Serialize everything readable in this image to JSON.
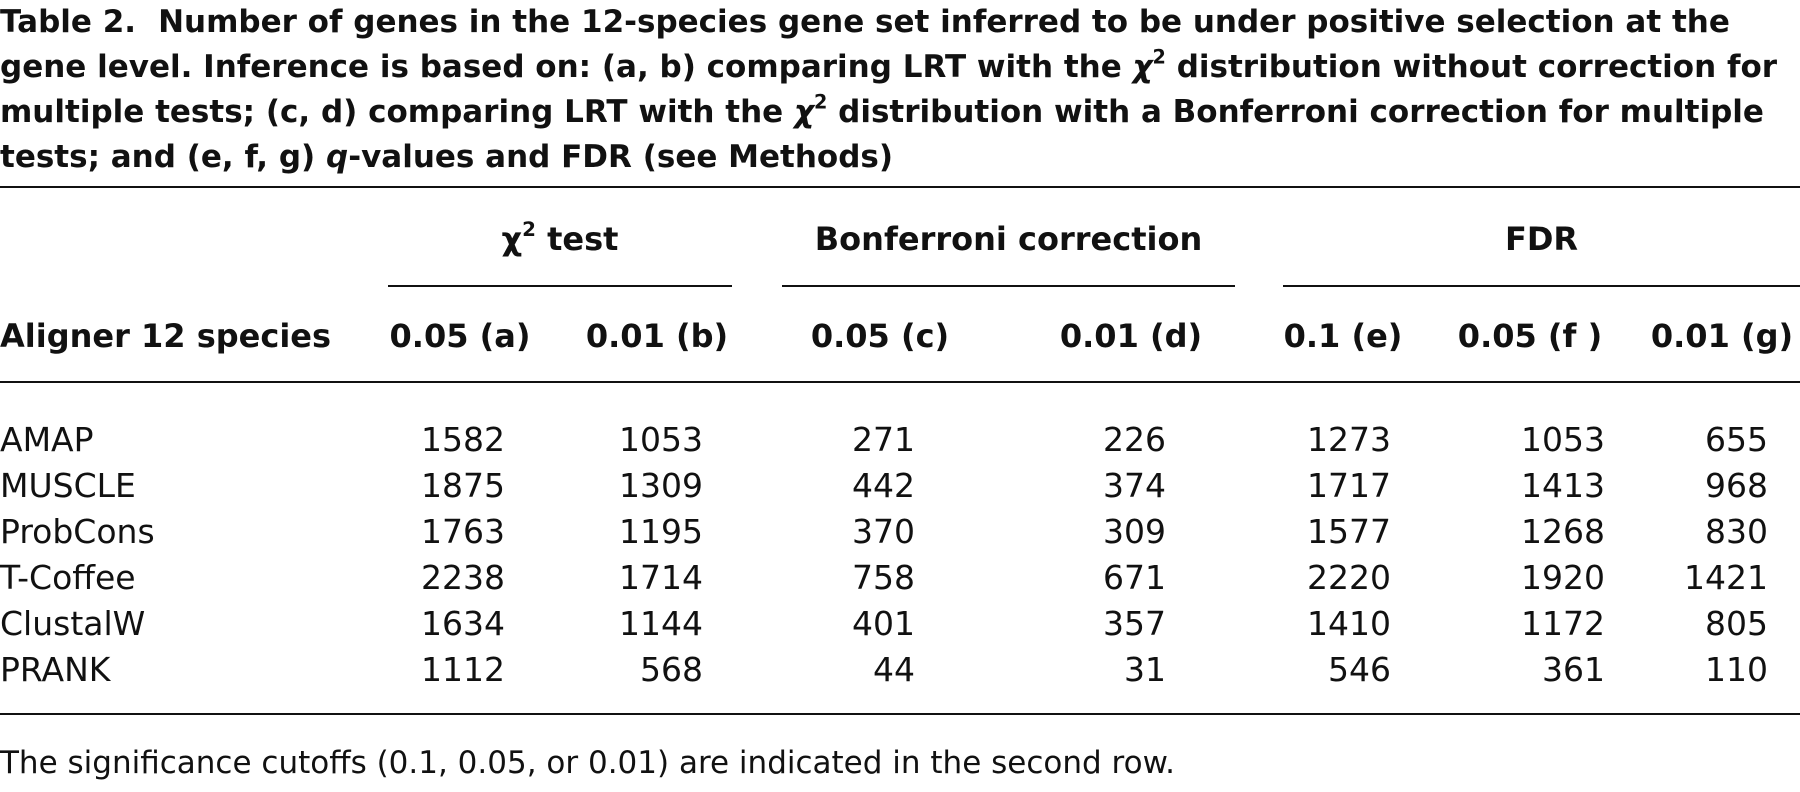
{
  "caption": {
    "label": "Table 2.",
    "parts": [
      "Number of genes in the 12-species gene set inferred to be under positive selection at the gene level. Inference is based on: (a, b) comparing LRT with the ",
      "χ",
      "2",
      " distribution without correction for multiple tests; (c, d) comparing LRT with the ",
      "χ",
      "2",
      " distribution with a Bonferroni correction for multiple tests; and (e, f, g) ",
      "q",
      "-values and FDR (see Methods)"
    ]
  },
  "table": {
    "groups": [
      {
        "parts": [
          "χ",
          "2",
          " test"
        ]
      },
      {
        "parts": [
          "Bonferroni correction"
        ]
      },
      {
        "parts": [
          "FDR"
        ]
      }
    ],
    "headers": [
      "Aligner 12 species",
      "0.05 (a)",
      "0.01 (b)",
      "0.05 (c)",
      "0.01 (d)",
      "0.1 (e)",
      "0.05 (f )",
      "0.01 (g)"
    ],
    "rows": [
      [
        "AMAP",
        1582,
        1053,
        271,
        226,
        1273,
        1053,
        655
      ],
      [
        "MUSCLE",
        1875,
        1309,
        442,
        374,
        1717,
        1413,
        968
      ],
      [
        "ProbCons",
        1763,
        1195,
        370,
        309,
        1577,
        1268,
        830
      ],
      [
        "T-Coffee",
        2238,
        1714,
        758,
        671,
        2220,
        1920,
        1421
      ],
      [
        "ClustalW",
        1634,
        1144,
        401,
        357,
        1410,
        1172,
        805
      ],
      [
        "PRANK",
        1112,
        568,
        44,
        31,
        546,
        361,
        110
      ]
    ]
  },
  "footnote": "The significance cutoffs (0.1, 0.05, or 0.01) are indicated in the second row."
}
